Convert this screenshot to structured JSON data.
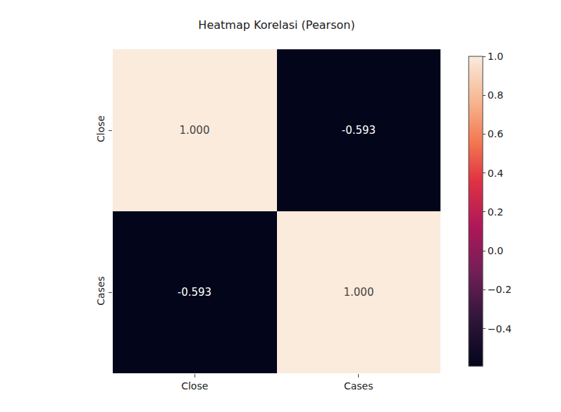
{
  "chart_data": {
    "type": "heatmap",
    "title": "Heatmap Korelasi (Pearson)",
    "x": [
      "Close",
      "Cases"
    ],
    "y": [
      "Close",
      "Cases"
    ],
    "values": [
      [
        1.0,
        -0.593
      ],
      [
        -0.593,
        1.0
      ]
    ],
    "value_labels": [
      [
        "1.000",
        "-0.593"
      ],
      [
        "-0.593",
        "1.000"
      ]
    ],
    "data_labels": true,
    "colorbar_range": [
      -0.593,
      1.0
    ],
    "colorbar_ticks": [
      {
        "value": 1.0,
        "label": "1.0"
      },
      {
        "value": 0.8,
        "label": "0.8"
      },
      {
        "value": 0.6,
        "label": "0.6"
      },
      {
        "value": 0.4,
        "label": "0.4"
      },
      {
        "value": 0.2,
        "label": "0.2"
      },
      {
        "value": 0.0,
        "label": "0.0"
      },
      {
        "value": -0.2,
        "label": "−0.2"
      },
      {
        "value": -0.4,
        "label": "−0.4"
      }
    ]
  }
}
